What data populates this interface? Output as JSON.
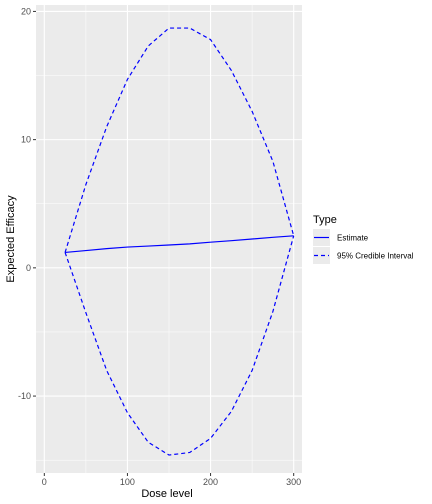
{
  "chart_data": {
    "type": "line",
    "title": "",
    "xlabel": "Dose level",
    "ylabel": "Expected Efficacy",
    "xlim": [
      -10,
      310
    ],
    "ylim": [
      -16,
      20.5
    ],
    "x_ticks": [
      0,
      100,
      200,
      300
    ],
    "y_ticks": [
      -10,
      0,
      10,
      20
    ],
    "grid": true,
    "legend": {
      "title": "Type",
      "position": "right",
      "entries": [
        "Estimate",
        "95% Credible Interval"
      ]
    },
    "colors": {
      "line": "#0000ff",
      "panel": "#ebebeb",
      "grid": "#ffffff"
    },
    "series": [
      {
        "name": "Estimate",
        "style": "solid",
        "x": [
          25,
          50,
          75,
          100,
          125,
          150,
          175,
          200,
          225,
          250,
          275,
          300
        ],
        "y": [
          1.2,
          1.35,
          1.5,
          1.62,
          1.7,
          1.78,
          1.87,
          2.0,
          2.12,
          2.25,
          2.38,
          2.5
        ]
      },
      {
        "name": "95% Credible Interval",
        "style": "dashed",
        "x": [
          25,
          50,
          75,
          100,
          125,
          150,
          175,
          200,
          225,
          250,
          275,
          300
        ],
        "y": [
          1.2,
          6.5,
          11.0,
          14.7,
          17.3,
          18.7,
          18.7,
          17.8,
          15.4,
          12.2,
          8.3,
          2.5
        ]
      },
      {
        "name": "95% Credible Interval",
        "style": "dashed",
        "x": [
          25,
          50,
          75,
          100,
          125,
          150,
          175,
          200,
          225,
          250,
          275,
          300
        ],
        "y": [
          1.2,
          -3.5,
          -8.0,
          -11.3,
          -13.6,
          -14.6,
          -14.4,
          -13.3,
          -11.2,
          -8.0,
          -3.4,
          2.5
        ]
      }
    ]
  }
}
